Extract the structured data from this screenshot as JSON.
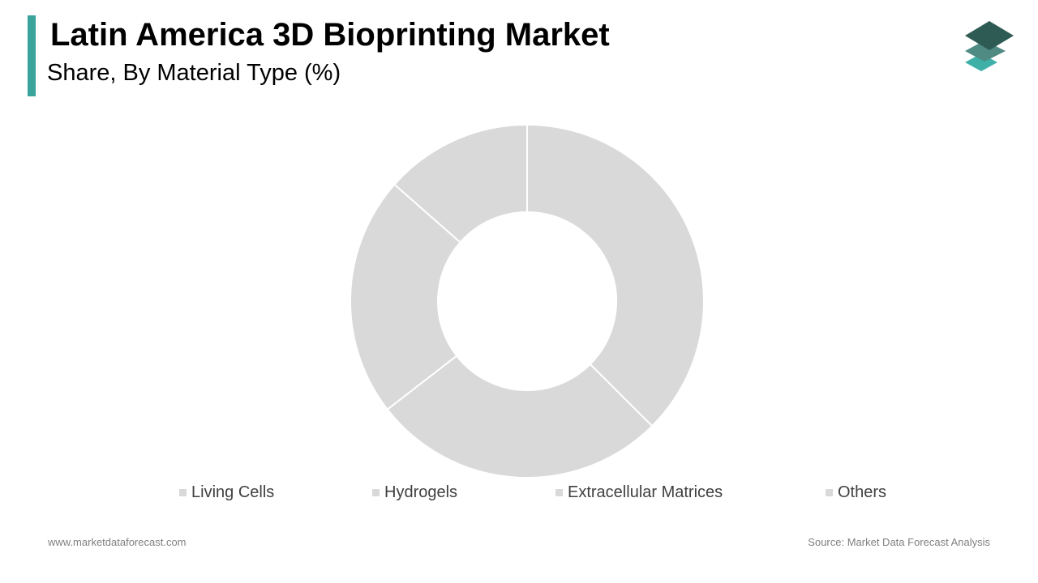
{
  "header": {
    "title": "Latin America 3D Bioprinting Market",
    "subtitle": "Share, By Material Type (%)"
  },
  "colors": {
    "accent": "#3aa39c",
    "segment": "#d9d9d9",
    "segment_border": "#ffffff",
    "logo_dark": "#2f5b55",
    "logo_mid": "#4f8a83",
    "logo_light": "#3fb0a8"
  },
  "logo": {
    "icon": "layers-icon"
  },
  "chart_data": {
    "type": "pie",
    "title": "",
    "donut": true,
    "categories": [
      "Living Cells",
      "Hydrogels",
      "Extracellular Matrices",
      "Others"
    ],
    "values": [
      37.5,
      27,
      22,
      13.5
    ],
    "segment_order_clockwise_from_top": [
      "Living Cells",
      "Hydrogels",
      "Extracellular Matrices",
      "Others"
    ],
    "legend_position": "bottom",
    "data_labels_shown": false
  },
  "footer": {
    "website": "www.marketdataforecast.com",
    "source": "Source: Market Data Forecast Analysis"
  }
}
